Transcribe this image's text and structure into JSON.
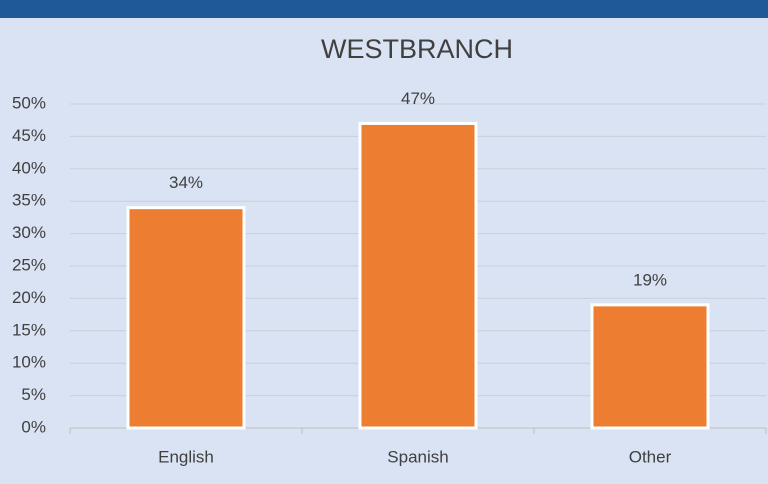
{
  "chart_data": {
    "type": "bar",
    "title": "WESTBRANCH",
    "categories": [
      "English",
      "Spanish",
      "Other"
    ],
    "values": [
      34,
      47,
      19
    ],
    "value_labels": [
      "34%",
      "47%",
      "19%"
    ],
    "color": "#ed7d31",
    "ylim": [
      0,
      50
    ],
    "yticks": [
      {
        "value": 0,
        "label": "0%"
      },
      {
        "value": 5,
        "label": "5%"
      },
      {
        "value": 10,
        "label": "10%"
      },
      {
        "value": 15,
        "label": "15%"
      },
      {
        "value": 20,
        "label": "20%"
      },
      {
        "value": 25,
        "label": "25%"
      },
      {
        "value": 30,
        "label": "30%"
      },
      {
        "value": 35,
        "label": "35%"
      },
      {
        "value": 40,
        "label": "40%"
      },
      {
        "value": 45,
        "label": "45%"
      },
      {
        "value": 50,
        "label": "50%"
      }
    ],
    "grid": true
  }
}
